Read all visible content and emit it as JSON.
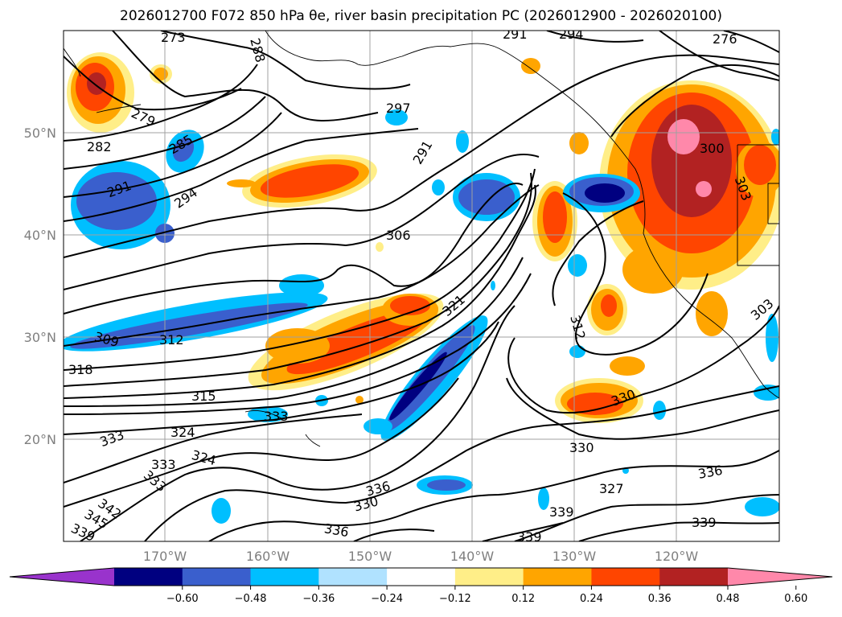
{
  "title": "2026012700 F072 850 hPa θe, river basin precipitation PC (2026012900 - 2026020100)",
  "lat_labels": [
    "50°N",
    "40°N",
    "30°N",
    "20°N"
  ],
  "lon_labels": [
    "170°W",
    "160°W",
    "150°W",
    "140°W",
    "130°W",
    "120°W"
  ],
  "colorbar": {
    "colors": [
      "#9933cc",
      "#000080",
      "#3a5fcd",
      "#00bfff",
      "#b0e2ff",
      "#ffffff",
      "#ffee88",
      "#ffa500",
      "#ff4500",
      "#b22222",
      "#ff88aa"
    ],
    "tick_labels": [
      "−0.60",
      "−0.48",
      "−0.36",
      "−0.24",
      "−0.12",
      "0.12",
      "0.24",
      "0.36",
      "0.48",
      "0.60"
    ]
  },
  "contour_labels": [
    "273",
    "288",
    "291",
    "294",
    "276",
    "279",
    "282",
    "285",
    "291",
    "294",
    "297",
    "291",
    "300",
    "303",
    "306",
    "303",
    "312",
    "309",
    "312",
    "318",
    "321",
    "315",
    "330",
    "333",
    "333",
    "324",
    "324",
    "330",
    "333",
    "327",
    "336",
    "333",
    "336",
    "330",
    "339",
    "342",
    "345",
    "339",
    "336",
    "339",
    "339"
  ]
}
